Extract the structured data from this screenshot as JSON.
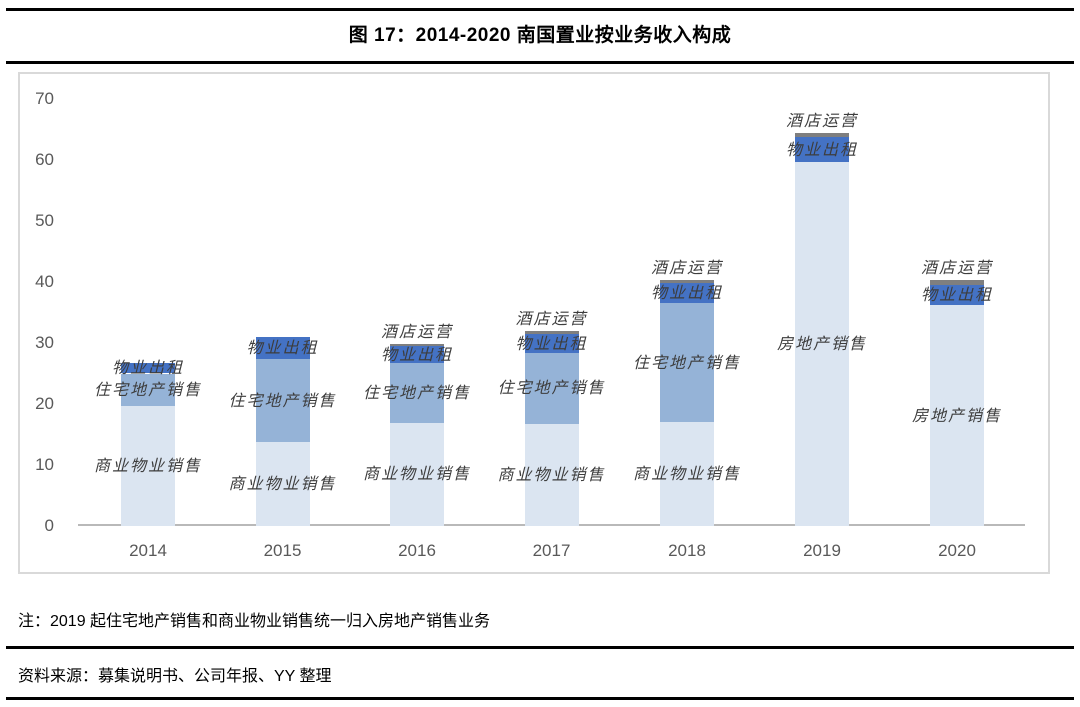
{
  "page": {
    "title": "图 17：2014-2020 南国置业按业务收入构成",
    "note": "注：2019 起住宅地产销售和商业物业销售统一归入房地产销售业务",
    "source": "资料来源：募集说明书、公司年报、YY 整理"
  },
  "colors": {
    "light_blue": "#dbe5f1",
    "medium_blue": "#95b3d7",
    "dark_blue": "#4472c4",
    "gray": "#7f7f7f",
    "axis_line": "#b9b9b9",
    "plot_border": "#d9d9d9",
    "tick_text": "#595959",
    "bar_label_text": "#3d3d3d",
    "rule": "#000000"
  },
  "chart_data": {
    "type": "bar",
    "stacked": true,
    "title": "图 17：2014-2020 南国置业按业务收入构成",
    "xlabel": "",
    "ylabel": "",
    "ylim": [
      0,
      70
    ],
    "yticks": [
      "0",
      "10",
      "20",
      "30",
      "40",
      "50",
      "60",
      "70"
    ],
    "grid": false,
    "legend": "none",
    "categories": [
      "2014",
      "2015",
      "2016",
      "2017",
      "2018",
      "2019",
      "2020"
    ],
    "segment_order_note": "segments listed bottom to top",
    "bars": [
      {
        "year": "2014",
        "total": 26.8,
        "segments": [
          {
            "label": "商业物业销售",
            "value": 19.6,
            "color": "light_blue",
            "label_pos": "center"
          },
          {
            "label": "住宅地产销售",
            "value": 5.4,
            "color": "medium_blue",
            "label_pos": "center"
          },
          {
            "label": "物业出租",
            "value": 1.8,
            "color": "dark_blue",
            "label_pos": "center"
          }
        ]
      },
      {
        "year": "2015",
        "total": 31.0,
        "segments": [
          {
            "label": "商业物业销售",
            "value": 13.8,
            "color": "light_blue",
            "label_pos": "center"
          },
          {
            "label": "住宅地产销售",
            "value": 13.5,
            "color": "medium_blue",
            "label_pos": "center"
          },
          {
            "label": "物业出租",
            "value": 3.7,
            "color": "dark_blue",
            "label_pos": "center"
          }
        ]
      },
      {
        "year": "2016",
        "total": 29.8,
        "segments": [
          {
            "label": "商业物业销售",
            "value": 16.9,
            "color": "light_blue",
            "label_pos": "center"
          },
          {
            "label": "住宅地产销售",
            "value": 9.8,
            "color": "medium_blue",
            "label_pos": "center"
          },
          {
            "label": "物业出租",
            "value": 2.8,
            "color": "dark_blue",
            "label_pos": "center"
          },
          {
            "label": "酒店运营",
            "value": 0.3,
            "color": "gray",
            "label_pos": "above"
          }
        ]
      },
      {
        "year": "2017",
        "total": 31.9,
        "segments": [
          {
            "label": "商业物业销售",
            "value": 16.8,
            "color": "light_blue",
            "label_pos": "center"
          },
          {
            "label": "住宅地产销售",
            "value": 11.5,
            "color": "medium_blue",
            "label_pos": "center"
          },
          {
            "label": "物业出租",
            "value": 3.2,
            "color": "dark_blue",
            "label_pos": "center"
          },
          {
            "label": "酒店运营",
            "value": 0.4,
            "color": "gray",
            "label_pos": "above"
          }
        ]
      },
      {
        "year": "2018",
        "total": 40.3,
        "segments": [
          {
            "label": "商业物业销售",
            "value": 17.0,
            "color": "light_blue",
            "label_pos": "center"
          },
          {
            "label": "住宅地产销售",
            "value": 19.5,
            "color": "medium_blue",
            "label_pos": "center"
          },
          {
            "label": "物业出租",
            "value": 3.3,
            "color": "dark_blue",
            "label_pos": "center"
          },
          {
            "label": "酒店运营",
            "value": 0.5,
            "color": "gray",
            "label_pos": "above"
          }
        ]
      },
      {
        "year": "2019",
        "total": 64.5,
        "segments": [
          {
            "label": "房地产销售",
            "value": 59.7,
            "color": "light_blue",
            "label_pos": "center"
          },
          {
            "label": "物业出租",
            "value": 4.0,
            "color": "dark_blue",
            "label_pos": "center"
          },
          {
            "label": "酒店运营",
            "value": 0.8,
            "color": "gray",
            "label_pos": "above"
          }
        ]
      },
      {
        "year": "2020",
        "total": 40.3,
        "segments": [
          {
            "label": "房地产销售",
            "value": 36.2,
            "color": "light_blue",
            "label_pos": "center"
          },
          {
            "label": "物业出租",
            "value": 3.3,
            "color": "dark_blue",
            "label_pos": "center"
          },
          {
            "label": "酒店运营",
            "value": 0.8,
            "color": "gray",
            "label_pos": "above"
          }
        ]
      }
    ]
  }
}
